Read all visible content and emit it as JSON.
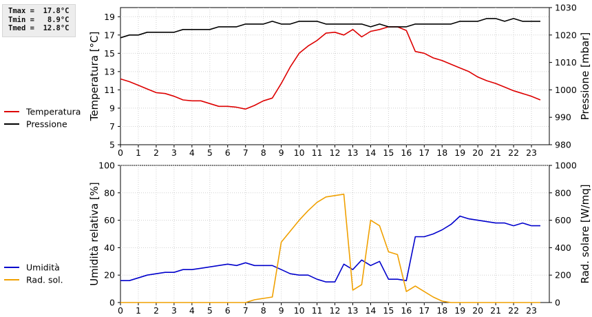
{
  "stats": {
    "tmax": "Tmax =  17.8°C",
    "tmin": "Tmin =   8.9°C",
    "tmed": "Tmed =  12.8°C"
  },
  "chart_data": [
    {
      "type": "line",
      "x": [
        0,
        0.5,
        1,
        1.5,
        2,
        2.5,
        3,
        3.5,
        4,
        4.5,
        5,
        5.5,
        6,
        6.5,
        7,
        7.5,
        8,
        8.5,
        9,
        9.5,
        10,
        10.5,
        11,
        11.5,
        12,
        12.5,
        13,
        13.5,
        14,
        14.5,
        15,
        15.5,
        16,
        16.5,
        17,
        17.5,
        18,
        18.5,
        19,
        19.5,
        20,
        20.5,
        21,
        21.5,
        22,
        22.5,
        23,
        23.5
      ],
      "xlim": [
        0,
        24
      ],
      "xticks": [
        0,
        1,
        2,
        3,
        4,
        5,
        6,
        7,
        8,
        9,
        10,
        11,
        12,
        13,
        14,
        15,
        16,
        17,
        18,
        19,
        20,
        21,
        22,
        23
      ],
      "ylabel": "Temperatura [°C]",
      "y2label": "Pressione [mbar]",
      "ylim": [
        5,
        20
      ],
      "yticks": [
        5,
        7,
        9,
        11,
        13,
        15,
        17,
        19
      ],
      "y2lim": [
        980,
        1030
      ],
      "y2ticks": [
        980,
        990,
        1000,
        1010,
        1020,
        1030
      ],
      "grid": true,
      "legend_position": "left",
      "series": [
        {
          "name": "Temperatura",
          "axis": "left",
          "color": "#dd0000",
          "values": [
            12.2,
            11.9,
            11.5,
            11.1,
            10.7,
            10.6,
            10.3,
            9.9,
            9.8,
            9.8,
            9.5,
            9.2,
            9.2,
            9.1,
            8.9,
            9.3,
            9.8,
            10.1,
            11.7,
            13.5,
            15.0,
            15.8,
            16.4,
            17.2,
            17.3,
            17.0,
            17.6,
            16.8,
            17.4,
            17.6,
            17.9,
            17.9,
            17.5,
            15.2,
            15.0,
            14.5,
            14.2,
            13.8,
            13.4,
            13.0,
            12.4,
            12.0,
            11.7,
            11.3,
            10.9,
            10.6,
            10.3,
            9.9
          ]
        },
        {
          "name": "Pressione",
          "axis": "right",
          "color": "#000000",
          "values": [
            1019,
            1020,
            1020,
            1021,
            1021,
            1021,
            1021,
            1022,
            1022,
            1022,
            1022,
            1023,
            1023,
            1023,
            1024,
            1024,
            1024,
            1025,
            1024,
            1024,
            1025,
            1025,
            1025,
            1024,
            1024,
            1024,
            1024,
            1024,
            1023,
            1024,
            1023,
            1023,
            1023,
            1024,
            1024,
            1024,
            1024,
            1024,
            1025,
            1025,
            1025,
            1026,
            1026,
            1025,
            1026,
            1025,
            1025,
            1025
          ]
        }
      ]
    },
    {
      "type": "line",
      "x": [
        0,
        0.5,
        1,
        1.5,
        2,
        2.5,
        3,
        3.5,
        4,
        4.5,
        5,
        5.5,
        6,
        6.5,
        7,
        7.5,
        8,
        8.5,
        9,
        9.5,
        10,
        10.5,
        11,
        11.5,
        12,
        12.5,
        13,
        13.5,
        14,
        14.5,
        15,
        15.5,
        16,
        16.5,
        17,
        17.5,
        18,
        18.5,
        19,
        19.5,
        20,
        20.5,
        21,
        21.5,
        22,
        22.5,
        23,
        23.5
      ],
      "xlim": [
        0,
        24
      ],
      "xticks": [
        0,
        1,
        2,
        3,
        4,
        5,
        6,
        7,
        8,
        9,
        10,
        11,
        12,
        13,
        14,
        15,
        16,
        17,
        18,
        19,
        20,
        21,
        22,
        23
      ],
      "ylabel": "Umidità relativa [%]",
      "y2label": "Rad. solare [W/mq]",
      "ylim": [
        0,
        100
      ],
      "yticks": [
        0,
        20,
        40,
        60,
        80,
        100
      ],
      "y2lim": [
        0,
        1000
      ],
      "y2ticks": [
        0,
        200,
        400,
        600,
        800,
        1000
      ],
      "grid": true,
      "legend_position": "left",
      "series": [
        {
          "name": "Umidità",
          "axis": "left",
          "color": "#0000cc",
          "values": [
            16,
            16,
            18,
            20,
            21,
            22,
            22,
            24,
            24,
            25,
            26,
            27,
            28,
            27,
            29,
            27,
            27,
            27,
            24,
            21,
            20,
            20,
            17,
            15,
            15,
            28,
            24,
            31,
            27,
            30,
            17,
            17,
            16,
            48,
            48,
            50,
            53,
            57,
            63,
            61,
            60,
            59,
            58,
            58,
            56,
            58,
            56,
            56
          ]
        },
        {
          "name": "Rad. sol.",
          "axis": "right",
          "color": "#f0a000",
          "values": [
            0,
            0,
            0,
            0,
            0,
            0,
            0,
            0,
            0,
            0,
            0,
            0,
            0,
            0,
            0,
            20,
            30,
            40,
            440,
            520,
            600,
            670,
            730,
            770,
            780,
            790,
            90,
            130,
            600,
            560,
            370,
            350,
            80,
            120,
            80,
            40,
            10,
            0,
            0,
            0,
            0,
            0,
            0,
            0,
            0,
            0,
            0,
            0
          ]
        }
      ]
    }
  ]
}
